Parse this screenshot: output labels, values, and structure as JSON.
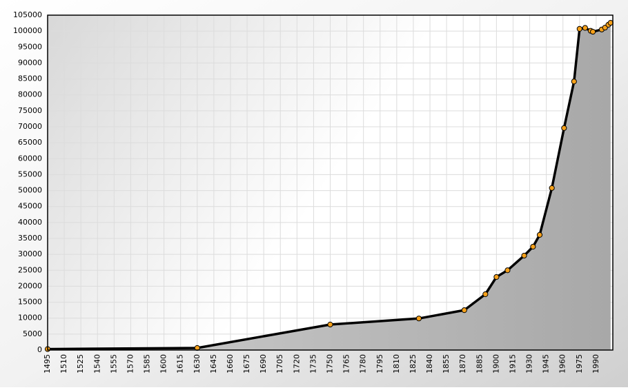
{
  "chart_data": {
    "type": "line",
    "x": [
      1495,
      1630,
      1750,
      1830,
      1871,
      1890,
      1900,
      1910,
      1925,
      1933,
      1939,
      1950,
      1961,
      1970,
      1975,
      1980,
      1985,
      1987,
      1995,
      1998,
      2001,
      2003
    ],
    "values": [
      300,
      650,
      8000,
      9900,
      12500,
      17500,
      22900,
      25000,
      29600,
      32400,
      36100,
      50800,
      69600,
      84200,
      100700,
      101000,
      100100,
      99800,
      100500,
      101100,
      102000,
      102600
    ],
    "color": "#000000",
    "marker_color": "#f5a01a",
    "xlim": [
      1495,
      2005
    ],
    "xticks": [
      1495,
      1510,
      1525,
      1540,
      1555,
      1570,
      1585,
      1600,
      1615,
      1630,
      1645,
      1660,
      1675,
      1690,
      1705,
      1720,
      1735,
      1750,
      1765,
      1780,
      1795,
      1810,
      1825,
      1840,
      1855,
      1870,
      1885,
      1900,
      1915,
      1930,
      1945,
      1960,
      1975,
      1990
    ],
    "ylim": [
      0,
      105000
    ],
    "yticks": [
      0,
      5000,
      10000,
      15000,
      20000,
      25000,
      30000,
      35000,
      40000,
      45000,
      50000,
      55000,
      60000,
      65000,
      70000,
      75000,
      80000,
      85000,
      90000,
      95000,
      100000,
      105000
    ],
    "grid": true
  }
}
